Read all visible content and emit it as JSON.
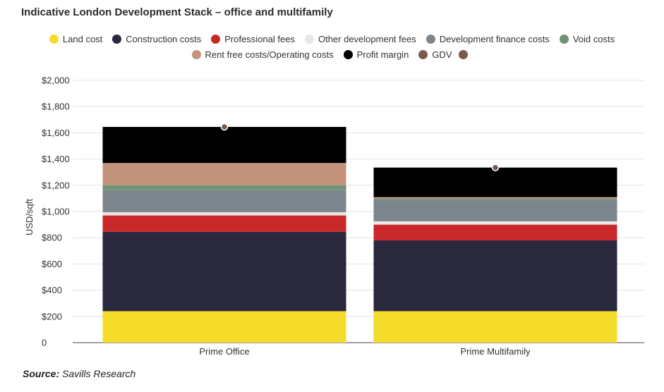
{
  "chart_data": {
    "type": "bar",
    "stacked": true,
    "title": "Indicative London Development Stack – office and multifamily",
    "ylabel": "USD/sqft",
    "xlabel": "",
    "ylim": [
      0,
      2000
    ],
    "yticks": [
      "0",
      "$200",
      "$400",
      "$600",
      "$800",
      "$1,000",
      "$1,200",
      "$1,400",
      "$1,600",
      "$1,800",
      "$2,000"
    ],
    "yticks_values": [
      0,
      200,
      400,
      600,
      800,
      1000,
      1200,
      1400,
      1600,
      1800,
      2000
    ],
    "grid": true,
    "legend_position": "top",
    "categories": [
      "Prime Office",
      "Prime Multifamily"
    ],
    "series": [
      {
        "name": "Land cost",
        "color": "#f5dc2a",
        "values": [
          240,
          240
        ]
      },
      {
        "name": "Construction costs",
        "color": "#29283d",
        "values": [
          605,
          540
        ]
      },
      {
        "name": "Professional fees",
        "color": "#c9282b",
        "values": [
          125,
          120
        ]
      },
      {
        "name": "Other development fees",
        "color": "#ebe6e3",
        "values": [
          25,
          25
        ]
      },
      {
        "name": "Development finance costs",
        "color": "#7d868d",
        "values": [
          170,
          165
        ]
      },
      {
        "name": "Void costs",
        "color": "#6f9373",
        "values": [
          35,
          10
        ]
      },
      {
        "name": "Rent free costs/Operating costs",
        "color": "#c2937a",
        "values": [
          170,
          10
        ]
      },
      {
        "name": "Profit margin",
        "color": "#000000",
        "values": [
          275,
          225
        ]
      }
    ],
    "gdv": {
      "name": "GDV",
      "color": "#7a5a4d",
      "values": [
        1645,
        1335
      ]
    }
  },
  "source": {
    "label": "Source:",
    "text": "Savills Research"
  }
}
